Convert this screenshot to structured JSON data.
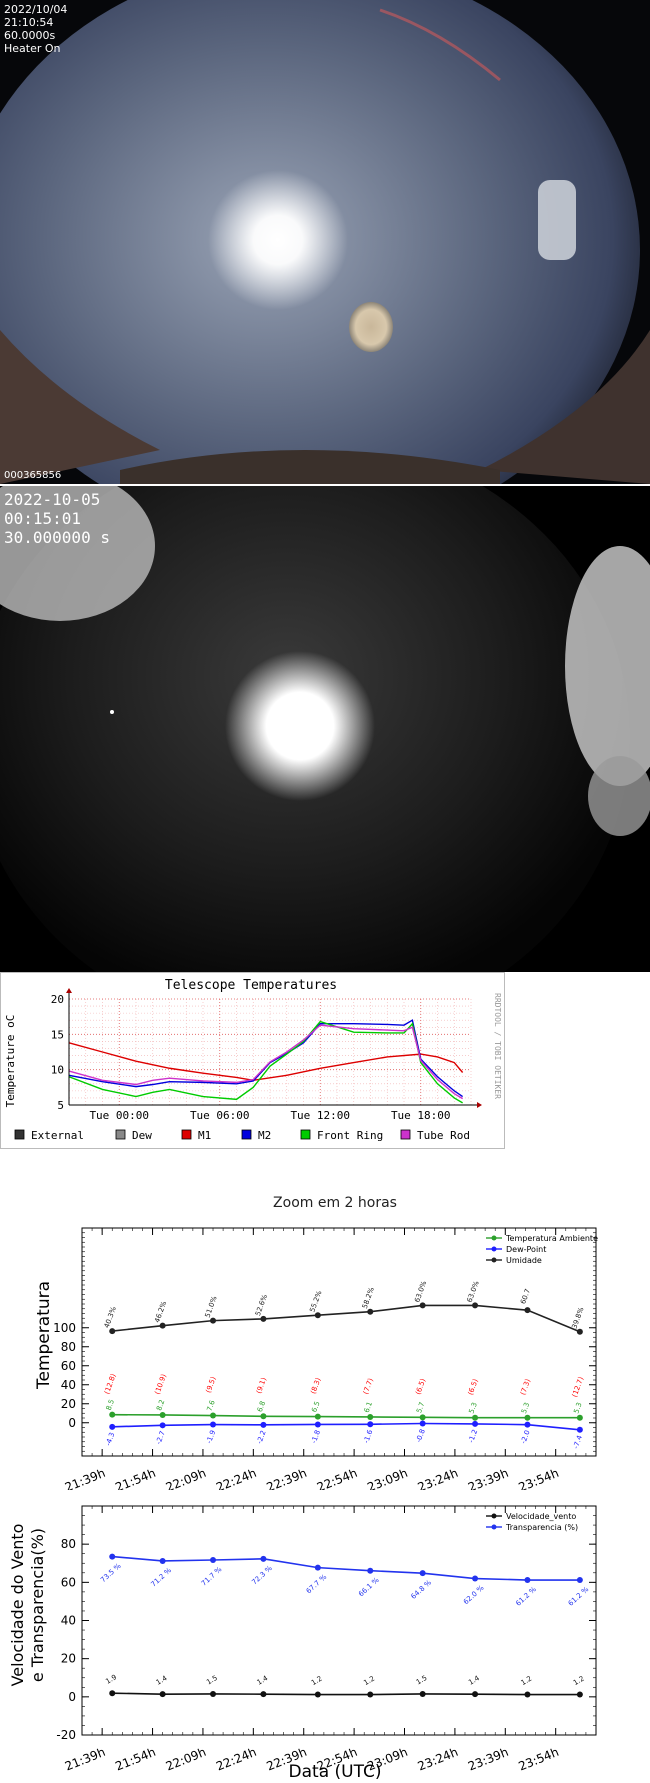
{
  "camera1": {
    "date": "2022/10/04",
    "time": "21:10:54",
    "exposure": "60.0000s",
    "status": "Heater On",
    "frame_id": "000365856"
  },
  "camera2": {
    "date": "2022-10-05",
    "time": "00:15:01",
    "exposure": "30.000000 s"
  },
  "colors": {
    "external": "#333333",
    "dew": "#888888",
    "m1": "#dd0000",
    "m2": "#0000dd",
    "front_ring": "#00cc00",
    "tube_rod": "#cc33cc",
    "temp_amb": "#2ca02c",
    "dew_point": "#1f1fff",
    "umidade": "#222222",
    "vento": "#111111",
    "transp": "#2233ee",
    "label_red": "#ff0000"
  },
  "chart_data": [
    {
      "type": "line",
      "title": "Telescope Temperatures",
      "ylabel": "Temperature oC",
      "watermark": "RRDTOOL / TOBI OETIKER",
      "ylim": [
        5,
        20
      ],
      "yticks": [
        5,
        10,
        15,
        20
      ],
      "x_ticks": [
        "Tue 00:00",
        "Tue 06:00",
        "Tue 12:00",
        "Tue 18:00"
      ],
      "x_tick_hours": [
        0,
        6,
        12,
        18
      ],
      "xlim_hours": [
        -3,
        21
      ],
      "grid": true,
      "legend_position": "bottom",
      "legend": [
        "External",
        "Dew",
        "M1",
        "M2",
        "Front Ring",
        "Tube Rod"
      ],
      "series": [
        {
          "name": "M1",
          "key": "m1",
          "x": [
            -3,
            -1,
            1,
            3,
            5,
            7,
            8,
            10,
            12,
            14,
            16,
            18,
            19,
            20,
            20.5
          ],
          "y": [
            13.8,
            12.5,
            11.2,
            10.2,
            9.5,
            8.9,
            8.5,
            9.2,
            10.2,
            11,
            11.8,
            12.2,
            11.8,
            11,
            9.6
          ]
        },
        {
          "name": "M2",
          "key": "m2",
          "x": [
            -3,
            -1,
            1,
            2,
            3,
            5,
            7,
            8,
            9,
            10,
            11,
            12,
            14,
            16,
            17,
            17.5,
            18,
            19,
            20,
            20.5
          ],
          "y": [
            9.2,
            8.3,
            7.6,
            7.9,
            8.3,
            8.2,
            8,
            8.4,
            11,
            12.3,
            13.8,
            16.5,
            16.5,
            16.4,
            16.3,
            17,
            11.5,
            9,
            7,
            6.2
          ]
        },
        {
          "name": "Front Ring",
          "key": "front_ring",
          "x": [
            -3,
            -1,
            1,
            2,
            3,
            5,
            7,
            8,
            9,
            10,
            11,
            12,
            14,
            16,
            17,
            17.5,
            18,
            19,
            20,
            20.5
          ],
          "y": [
            9,
            7.2,
            6.2,
            6.8,
            7.2,
            6.2,
            5.8,
            7.5,
            10.5,
            12.2,
            14,
            16.8,
            15.3,
            15.2,
            15.2,
            16.5,
            11,
            8,
            6,
            5.3
          ]
        },
        {
          "name": "Tube Rod",
          "key": "tube_rod",
          "x": [
            -3,
            -1,
            1,
            2,
            3,
            5,
            7,
            8,
            9,
            10,
            11,
            12,
            14,
            16,
            17,
            17.5,
            18,
            19,
            20,
            20.5
          ],
          "y": [
            9.8,
            8.5,
            7.9,
            8.5,
            8.8,
            8.4,
            8.2,
            8.6,
            11.1,
            12.5,
            14.2,
            16.3,
            15.8,
            15.6,
            15.5,
            16,
            11.3,
            8.6,
            6.6,
            5.9
          ]
        }
      ]
    },
    {
      "type": "line",
      "title": "Zoom em 2 horas",
      "ylabel": "Temperatura",
      "ylim": [
        -35,
        205
      ],
      "yticks": [
        0,
        20,
        40,
        60,
        80,
        100
      ],
      "categories": [
        "21:39h",
        "21:54h",
        "22:09h",
        "22:24h",
        "22:39h",
        "22:54h",
        "23:09h",
        "23:24h",
        "23:39h",
        "23:54h"
      ],
      "x": [
        21.65,
        21.9,
        22.15,
        22.4,
        22.65,
        22.9,
        23.15,
        23.4,
        23.65,
        23.9
      ],
      "x_points": [
        21.7,
        21.95,
        22.2,
        22.45,
        22.72,
        22.98,
        23.24,
        23.5,
        23.76,
        24.02
      ],
      "xlim": [
        21.55,
        24.1
      ],
      "legend_position": "top-right",
      "red_labels": [
        "(12.8)",
        "(10.9)",
        "(9.5)",
        "(9.1)",
        "(8.3)",
        "(7.7)",
        "(6.5)",
        "(6.5)",
        "(7.3)",
        "(12.7)"
      ],
      "series": [
        {
          "name": "Temperatura Ambiente",
          "key": "temp_amb",
          "values": [
            8.5,
            8.2,
            7.6,
            6.8,
            6.5,
            6.1,
            5.7,
            5.3,
            5.3,
            5.3
          ],
          "labels": [
            "8.5",
            "8.2",
            "7.6",
            "6.8",
            "6.5",
            "6.1",
            "5.7",
            "5.3",
            "5.3",
            "5.3"
          ]
        },
        {
          "name": "Dew-Point",
          "key": "dew_point",
          "values": [
            -4.3,
            -2.7,
            -1.9,
            -2.2,
            -1.8,
            -1.6,
            -0.8,
            -1.2,
            -2.0,
            -7.4
          ],
          "labels": [
            "-4.3",
            "-2.7",
            "-1.9",
            "-2.2",
            "-1.8",
            "-1.6",
            "-0.8",
            "-1.2",
            "-2.0",
            "-7.4"
          ]
        },
        {
          "name": "Umidade",
          "key": "umidade",
          "values": [
            96.5,
            102.2,
            107.5,
            109.3,
            113.2,
            116.9,
            123.5,
            123.5,
            118.5,
            95.8
          ],
          "labels": [
            "40.3%",
            "46.2%",
            "51.0%",
            "52.6%",
            "55.2%",
            "58.2%",
            "63.0%",
            "63.0%",
            "60.7",
            "39.8%"
          ]
        }
      ]
    },
    {
      "type": "line",
      "title": "",
      "ylabel": "Velocidade do Vento\ne Transparencia(%)",
      "xlabel": "Data (UTC)",
      "ylim": [
        -20,
        100
      ],
      "yticks": [
        -20,
        0,
        20,
        40,
        60,
        80
      ],
      "categories": [
        "21:39h",
        "21:54h",
        "22:09h",
        "22:24h",
        "22:39h",
        "22:54h",
        "23:09h",
        "23:24h",
        "23:39h",
        "23:54h"
      ],
      "x": [
        21.65,
        21.9,
        22.15,
        22.4,
        22.65,
        22.9,
        23.15,
        23.4,
        23.65,
        23.9
      ],
      "x_points": [
        21.7,
        21.95,
        22.2,
        22.45,
        22.72,
        22.98,
        23.24,
        23.5,
        23.76,
        24.02
      ],
      "xlim": [
        21.55,
        24.1
      ],
      "legend_position": "top-right",
      "series": [
        {
          "name": "Velocidade_vento",
          "key": "vento",
          "values": [
            1.9,
            1.4,
            1.5,
            1.4,
            1.2,
            1.2,
            1.5,
            1.4,
            1.2,
            1.2
          ],
          "labels": [
            "1.9",
            "1.4",
            "1.5",
            "1.4",
            "1.2",
            "1.2",
            "1.5",
            "1.4",
            "1.2",
            "1.2"
          ]
        },
        {
          "name": "Transparencia (%)",
          "key": "transp",
          "values": [
            73.5,
            71.2,
            71.7,
            72.3,
            67.7,
            66.1,
            64.8,
            62.0,
            61.2,
            61.2
          ],
          "labels": [
            "73.5 %",
            "71.2 %",
            "71.7 %",
            "72.3 %",
            "67.7 %",
            "66.1 %",
            "64.8 %",
            "62.0 %",
            "61.2 %",
            "61.2 %"
          ]
        }
      ]
    }
  ]
}
